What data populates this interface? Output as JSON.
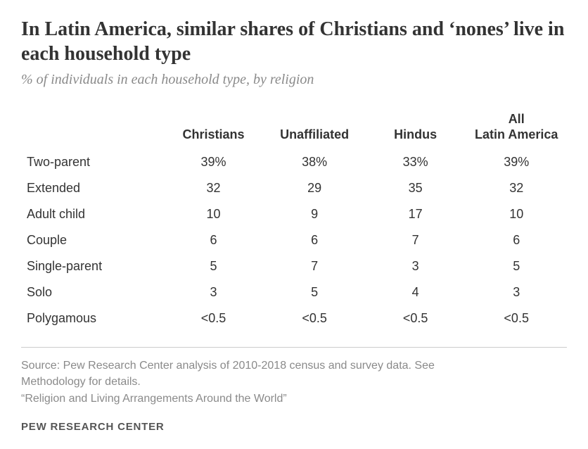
{
  "title": "In Latin America, similar shares of Christians and ‘nones’ live in each household type",
  "subtitle": "% of individuals in each household type, by religion",
  "table": {
    "columns": [
      "",
      "Christians",
      "Unaffiliated",
      "Hindus",
      "All Latin America"
    ],
    "column_widths_pct": [
      26,
      18.5,
      18.5,
      18.5,
      18.5
    ],
    "header_fontsize_pt": 17,
    "cell_fontsize_pt": 17,
    "header_color": "#333333",
    "cell_color": "#333333",
    "rows": [
      {
        "label": "Two-parent",
        "values": [
          "39%",
          "38%",
          "33%",
          "39%"
        ]
      },
      {
        "label": "Extended",
        "values": [
          "32",
          "29",
          "35",
          "32"
        ]
      },
      {
        "label": "Adult child",
        "values": [
          "10",
          "9",
          "17",
          "10"
        ]
      },
      {
        "label": "Couple",
        "values": [
          "6",
          "6",
          "7",
          "6"
        ]
      },
      {
        "label": "Single-parent",
        "values": [
          "5",
          "7",
          "3",
          "5"
        ]
      },
      {
        "label": "Solo",
        "values": [
          "3",
          "5",
          "4",
          "3"
        ]
      },
      {
        "label": "Polygamous",
        "values": [
          "<0.5",
          "<0.5",
          "<0.5",
          "<0.5"
        ]
      }
    ]
  },
  "footer": {
    "source_line1": "Source: Pew Research Center analysis of 2010-2018 census and survey data. See",
    "source_line2": "Methodology for details.",
    "note": "“Religion and Living Arrangements Around the World”",
    "brand": "PEW RESEARCH CENTER"
  },
  "style": {
    "background_color": "#ffffff",
    "title_color": "#333333",
    "subtitle_color": "#8a8a8a",
    "footer_text_color": "#8a8a8a",
    "footer_border_color": "#cccccc",
    "title_fontsize_pt": 21,
    "subtitle_fontsize_pt": 15,
    "footer_fontsize_pt": 12
  }
}
